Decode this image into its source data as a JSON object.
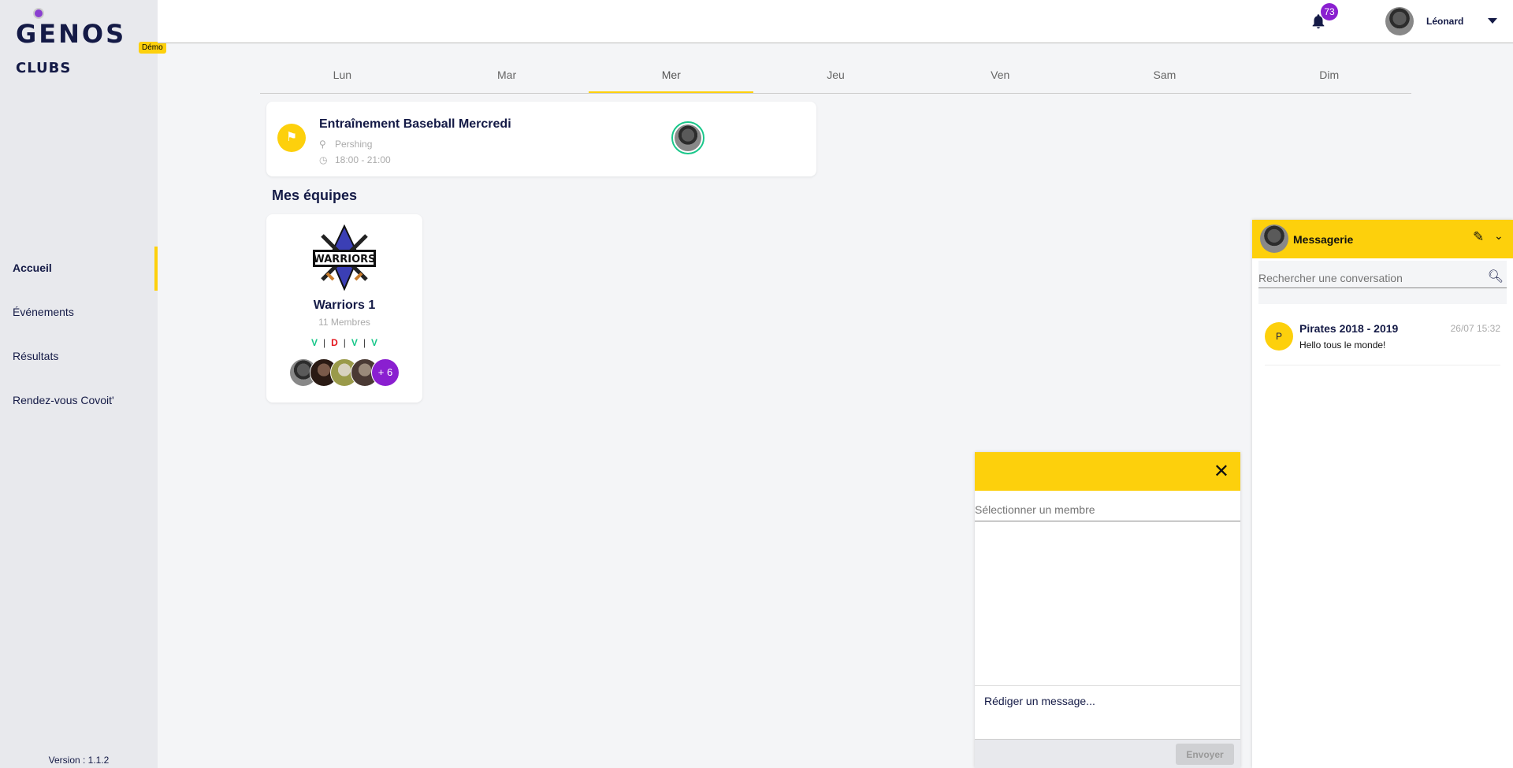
{
  "brand": {
    "name": "GENOS",
    "sub": "CLUBS",
    "badge": "Démo"
  },
  "sidebar": {
    "items": [
      {
        "label": "Accueil",
        "active": true
      },
      {
        "label": "Événements"
      },
      {
        "label": "Résultats"
      },
      {
        "label": "Rendez-vous Covoit'"
      }
    ],
    "version": "Version : 1.1.2"
  },
  "header": {
    "notifications": "73",
    "user": "Léonard"
  },
  "days": [
    "Lun",
    "Mar",
    "Mer",
    "Jeu",
    "Ven",
    "Sam",
    "Dim"
  ],
  "active_day": "Mer",
  "event": {
    "title": "Entraînement Baseball Mercredi",
    "location": "Pershing",
    "time": "18:00 - 21:00"
  },
  "teams_title": "Mes équipes",
  "team": {
    "name": "Warriors 1",
    "members": "11 Membres",
    "results": [
      "V",
      "D",
      "V",
      "V"
    ],
    "more": "+ 6",
    "logo_text": "WARRIORS"
  },
  "messaging": {
    "title": "Messagerie",
    "search_placeholder": "Rechercher une conversation",
    "conversations": [
      {
        "initial": "P",
        "name": "Pirates 2018 - 2019",
        "time": "26/07 15:32",
        "text": "Hello tous le monde!"
      }
    ]
  },
  "compose": {
    "member_placeholder": "Sélectionner un membre",
    "message_placeholder": "Rédiger un message...",
    "send": "Envoyer"
  },
  "colors": {
    "accent": "#fdd00c",
    "purple": "#8a1fd0",
    "win": "#19c78a",
    "loss": "#e3141c"
  }
}
